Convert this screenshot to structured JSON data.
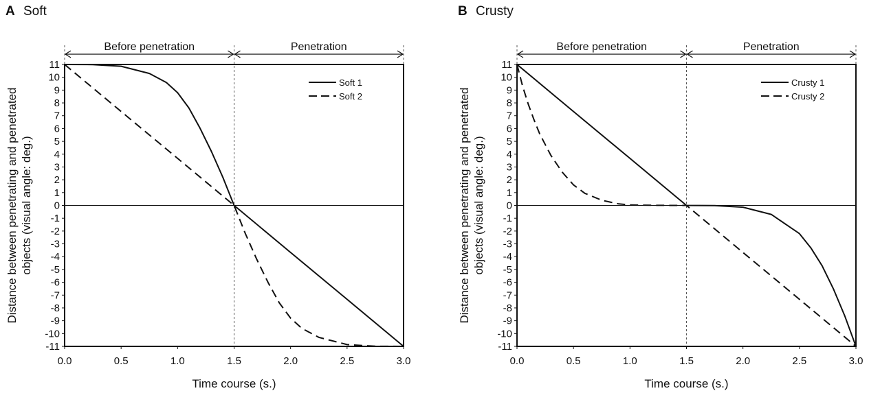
{
  "chart_data": [
    {
      "panel_letter": "A",
      "panel_title": "Soft",
      "type": "line",
      "xlabel": "Time course (s.)",
      "ylabel_lines": [
        "Distance between penetrating and penetrated",
        "objects (visual angle: deg.)"
      ],
      "xlim": [
        0,
        3.0
      ],
      "ylim": [
        -11,
        11
      ],
      "xticks": [
        0,
        0.5,
        1.0,
        1.5,
        2.0,
        2.5,
        3.0
      ],
      "xtick_labels": [
        "0.0",
        "0.5",
        "1.0",
        "1.5",
        "2.0",
        "2.5",
        "3.0"
      ],
      "yticks": [
        11,
        10,
        9,
        8,
        7,
        6,
        5,
        4,
        3,
        2,
        1,
        0,
        -1,
        -2,
        -3,
        -4,
        -5,
        -6,
        -7,
        -8,
        -9,
        -10,
        -11
      ],
      "ytick_labels": [
        "11",
        "10",
        "9",
        "8",
        "7",
        "6",
        "5",
        "4",
        "3",
        "2",
        "1",
        "0",
        "-1",
        "-2",
        "-3",
        "-4",
        "-5",
        "-6",
        "-7",
        "-8",
        "-9",
        "-10",
        "-11"
      ],
      "phases": [
        {
          "label": "Before penetration",
          "from": 0,
          "to": 1.5
        },
        {
          "label": "Penetration",
          "from": 1.5,
          "to": 3.0
        }
      ],
      "legend_position": "top-right",
      "series": [
        {
          "name": "Soft 1",
          "style": "solid",
          "x": [
            0,
            0.25,
            0.5,
            0.75,
            0.9,
            1.0,
            1.1,
            1.2,
            1.3,
            1.4,
            1.5,
            2.0,
            2.5,
            3.0
          ],
          "y": [
            11,
            10.99,
            10.86,
            10.3,
            9.6,
            8.8,
            7.6,
            6.0,
            4.2,
            2.2,
            0,
            -3.67,
            -7.33,
            -11
          ]
        },
        {
          "name": "Soft 2",
          "style": "dashed",
          "x": [
            0,
            0.5,
            1.0,
            1.5,
            1.6,
            1.7,
            1.8,
            1.9,
            2.0,
            2.1,
            2.25,
            2.5,
            2.75,
            3.0
          ],
          "y": [
            11,
            7.33,
            3.67,
            0,
            -2.2,
            -4.2,
            -6.0,
            -7.6,
            -8.8,
            -9.6,
            -10.3,
            -10.86,
            -10.99,
            -11
          ]
        }
      ]
    },
    {
      "panel_letter": "B",
      "panel_title": "Crusty",
      "type": "line",
      "xlabel": "Time course (s.)",
      "ylabel_lines": [
        "Distance between penetrating and penetrated",
        "objects (visual angle: deg.)"
      ],
      "xlim": [
        0,
        3.0
      ],
      "ylim": [
        -11,
        11
      ],
      "xticks": [
        0,
        0.5,
        1.0,
        1.5,
        2.0,
        2.5,
        3.0
      ],
      "xtick_labels": [
        "0.0",
        "0.5",
        "1.0",
        "1.5",
        "2.0",
        "2.5",
        "3.0"
      ],
      "yticks": [
        11,
        10,
        9,
        8,
        7,
        6,
        5,
        4,
        3,
        2,
        1,
        0,
        -1,
        -2,
        -3,
        -4,
        -5,
        -6,
        -7,
        -8,
        -9,
        -10,
        -11
      ],
      "ytick_labels": [
        "11",
        "10",
        "9",
        "8",
        "7",
        "6",
        "5",
        "4",
        "3",
        "2",
        "1",
        "0",
        "-1",
        "-2",
        "-3",
        "-4",
        "-5",
        "-6",
        "-7",
        "-8",
        "-9",
        "-10",
        "-11"
      ],
      "phases": [
        {
          "label": "Before penetration",
          "from": 0,
          "to": 1.5
        },
        {
          "label": "Penetration",
          "from": 1.5,
          "to": 3.0
        }
      ],
      "legend_position": "top-right",
      "series": [
        {
          "name": "Crusty 1",
          "style": "solid",
          "x": [
            0,
            0.5,
            1.0,
            1.5,
            1.75,
            2.0,
            2.25,
            2.5,
            2.6,
            2.7,
            2.8,
            2.9,
            3.0
          ],
          "y": [
            11,
            7.33,
            3.67,
            0,
            -0.01,
            -0.14,
            -0.7,
            -2.2,
            -3.3,
            -4.7,
            -6.5,
            -8.6,
            -11
          ]
        },
        {
          "name": "Crusty 2",
          "style": "dashed",
          "x": [
            0,
            0.05,
            0.1,
            0.15,
            0.2,
            0.3,
            0.4,
            0.5,
            0.6,
            0.75,
            0.9,
            1.0,
            1.25,
            1.5,
            2.0,
            2.5,
            3.0
          ],
          "y": [
            11,
            9.3,
            7.9,
            6.7,
            5.6,
            3.9,
            2.6,
            1.6,
            0.95,
            0.4,
            0.12,
            0.04,
            0.003,
            0,
            -3.67,
            -7.33,
            -11
          ]
        }
      ]
    }
  ]
}
